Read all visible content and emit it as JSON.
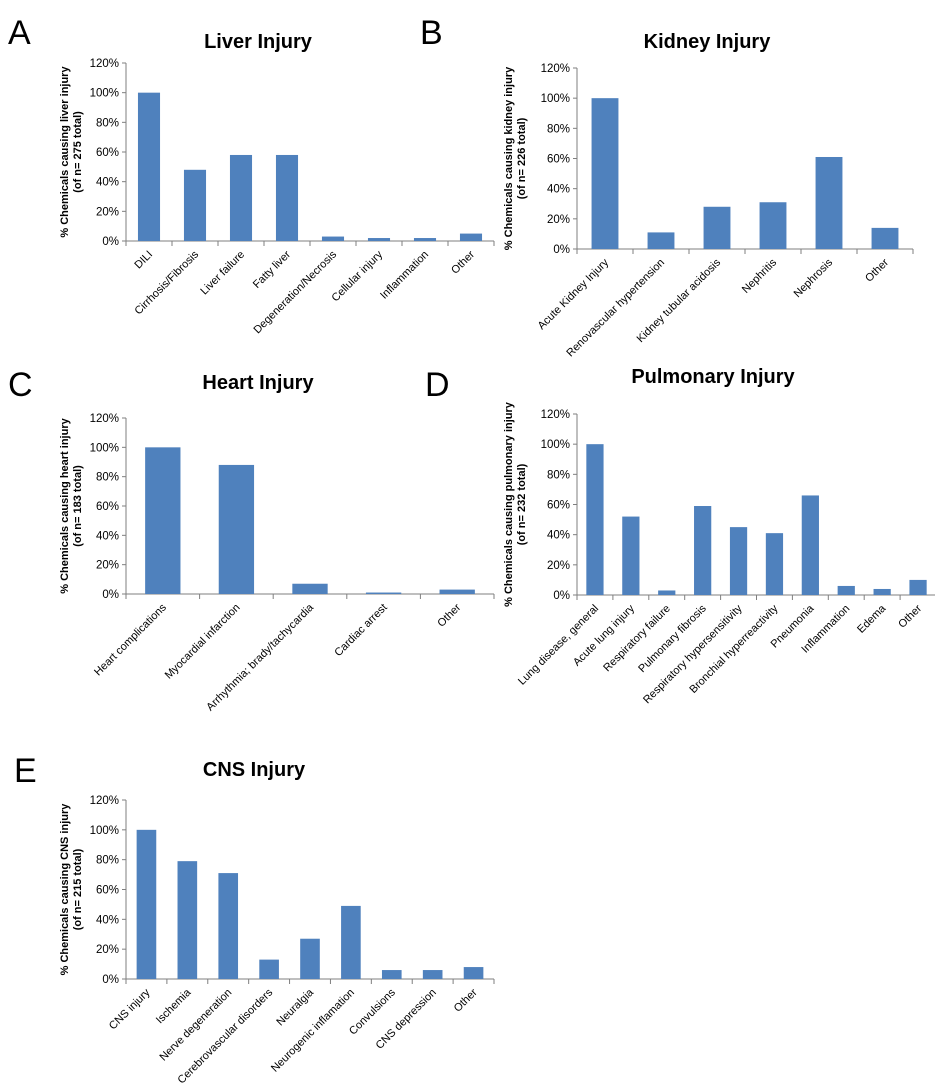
{
  "chart_data": [
    {
      "panel": "A",
      "type": "bar",
      "title": "Liver Injury",
      "ylabel": [
        "% Chemicals causing liver injury",
        "(of n= 275 total)"
      ],
      "yticks": [
        "0%",
        "20%",
        "40%",
        "60%",
        "80%",
        "100%",
        "120%"
      ],
      "ylim": [
        0,
        120
      ],
      "categories": [
        "DILI",
        "Cirrhosis/Fibrosis",
        "Liver failure",
        "Fatty liver",
        "Degeneration/Necrosis",
        "Cellular injury",
        "Inflammation",
        "Other"
      ],
      "values": [
        100,
        48,
        58,
        58,
        3,
        2,
        2,
        5
      ],
      "color": "#4f81bd"
    },
    {
      "panel": "B",
      "type": "bar",
      "title": "Kidney Injury",
      "ylabel": [
        "% Chemicals causing kidney injury",
        "(of n= 226 total)"
      ],
      "yticks": [
        "0%",
        "20%",
        "40%",
        "60%",
        "80%",
        "100%",
        "120%"
      ],
      "ylim": [
        0,
        120
      ],
      "categories": [
        "Acute Kidney Injury",
        "Renovascular hypertension",
        "Kidney tubular acidosis",
        "Nephritis",
        "Nephrosis",
        "Other"
      ],
      "values": [
        100,
        11,
        28,
        31,
        61,
        14
      ],
      "color": "#4f81bd"
    },
    {
      "panel": "C",
      "type": "bar",
      "title": "Heart Injury",
      "ylabel": [
        "% Chemicals causing heart injury",
        "(of n= 183 total)"
      ],
      "yticks": [
        "0%",
        "20%",
        "40%",
        "60%",
        "80%",
        "100%",
        "120%"
      ],
      "ylim": [
        0,
        120
      ],
      "categories": [
        "Heart complications",
        "Myocardial infarction",
        "Arrhythmia; brady/tachycardia",
        "Cardiac arrest",
        "Other"
      ],
      "values": [
        100,
        88,
        7,
        1,
        3
      ],
      "color": "#4f81bd"
    },
    {
      "panel": "D",
      "type": "bar",
      "title": "Pulmonary Injury",
      "ylabel": [
        "% Chemicals causing pulmonary injury",
        "(of n= 232 total)"
      ],
      "yticks": [
        "0%",
        "20%",
        "40%",
        "60%",
        "80%",
        "100%",
        "120%"
      ],
      "ylim": [
        0,
        120
      ],
      "categories": [
        "Lung disease, general",
        "Acute lung injury",
        "Respiratory failure",
        "Pulmonary fibrosis",
        "Respiratory hypersensitivity",
        "Bronchial hyperreactivity",
        "Pneumonia",
        "Inflammation",
        "Edema",
        "Other"
      ],
      "values": [
        100,
        52,
        3,
        59,
        45,
        41,
        66,
        6,
        4,
        10
      ],
      "color": "#4f81bd"
    },
    {
      "panel": "E",
      "type": "bar",
      "title": "CNS Injury",
      "ylabel": [
        "% Chemicals causing CNS injury",
        "(of n= 215 total)"
      ],
      "yticks": [
        "0%",
        "20%",
        "40%",
        "60%",
        "80%",
        "100%",
        "120%"
      ],
      "ylim": [
        0,
        120
      ],
      "categories": [
        "CNS injury",
        "Ischemia",
        "Nerve degeneration",
        "Cerebrovascular disorders",
        "Neuralgia",
        "Neurogenic inflamation",
        "Convulsions",
        "CNS depression",
        "Other"
      ],
      "values": [
        100,
        79,
        71,
        13,
        27,
        49,
        6,
        6,
        8
      ],
      "color": "#4f81bd"
    }
  ]
}
